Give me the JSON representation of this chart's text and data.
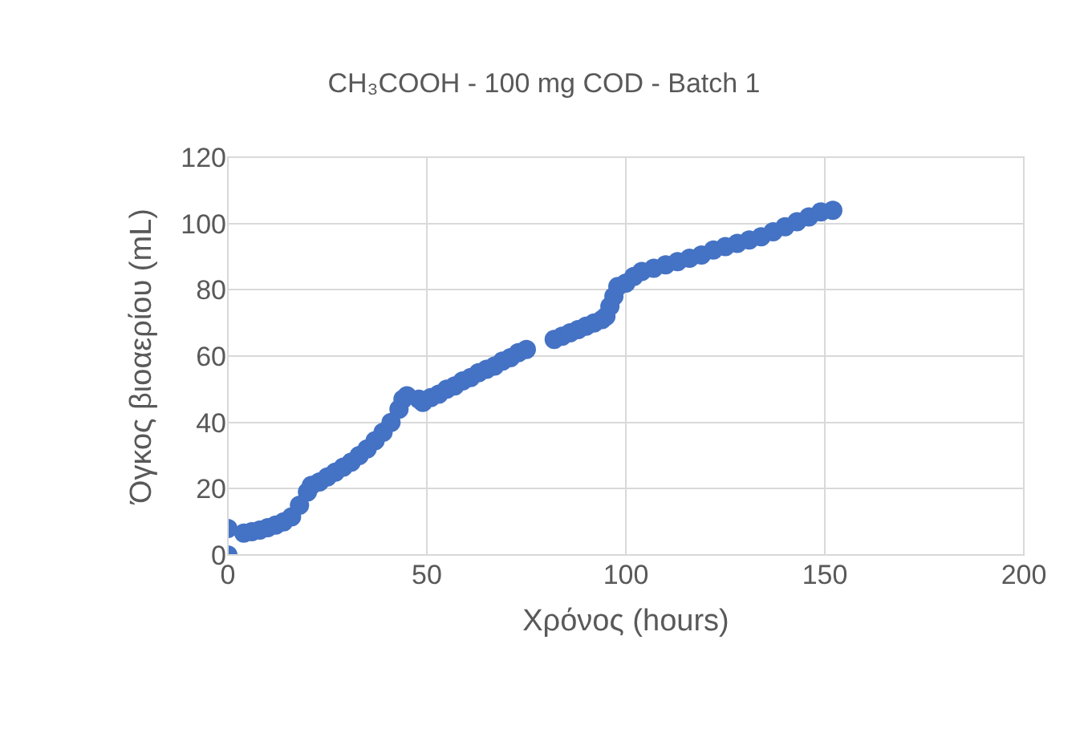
{
  "chart_data": {
    "type": "scatter",
    "title": "CH₃COOH - 100 mg COD - Batch 1",
    "xlabel": "Χρόνος (hours)",
    "ylabel": "Όγκος βιοαερίου (mL)",
    "x": [
      0,
      0,
      4,
      6,
      8,
      10,
      12,
      14,
      16,
      18,
      20,
      21,
      23,
      25,
      27,
      29,
      31,
      33,
      35,
      37,
      39,
      41,
      43,
      44,
      45,
      48,
      49,
      51,
      53,
      55,
      57,
      59,
      61,
      63,
      65,
      67,
      69,
      71,
      73,
      75,
      82,
      84,
      86,
      88,
      90,
      92,
      94,
      95,
      96,
      97,
      98,
      100,
      102,
      104,
      107,
      110,
      113,
      116,
      119,
      122,
      125,
      128,
      131,
      134,
      137,
      140,
      143,
      146,
      149,
      152
    ],
    "series": [
      {
        "color": "#4472c4",
        "values": [
          0,
          8,
          6.6,
          7,
          7.5,
          8.2,
          9,
          10,
          11.5,
          15,
          19,
          21,
          22,
          23.5,
          25,
          26.5,
          28,
          30,
          32,
          34.5,
          37,
          40,
          44,
          47,
          48,
          47,
          46,
          47.5,
          48.5,
          50,
          51,
          52.5,
          53.5,
          55,
          56,
          57,
          58.5,
          59.5,
          61,
          62,
          65,
          66,
          67,
          68,
          69,
          70,
          71,
          72,
          75,
          78,
          81,
          82,
          84,
          85.5,
          86.5,
          87.5,
          88.5,
          89.5,
          90.5,
          92,
          93,
          94,
          95,
          96,
          97.5,
          99,
          100.5,
          102,
          103.5,
          104
        ]
      }
    ],
    "xlim": [
      0,
      200
    ],
    "xticks": [
      0,
      50,
      100,
      150,
      200
    ],
    "ylim": [
      0,
      120
    ],
    "yticks": [
      0,
      20,
      40,
      60,
      80,
      100,
      120
    ],
    "grid": true,
    "marker": "circle"
  }
}
